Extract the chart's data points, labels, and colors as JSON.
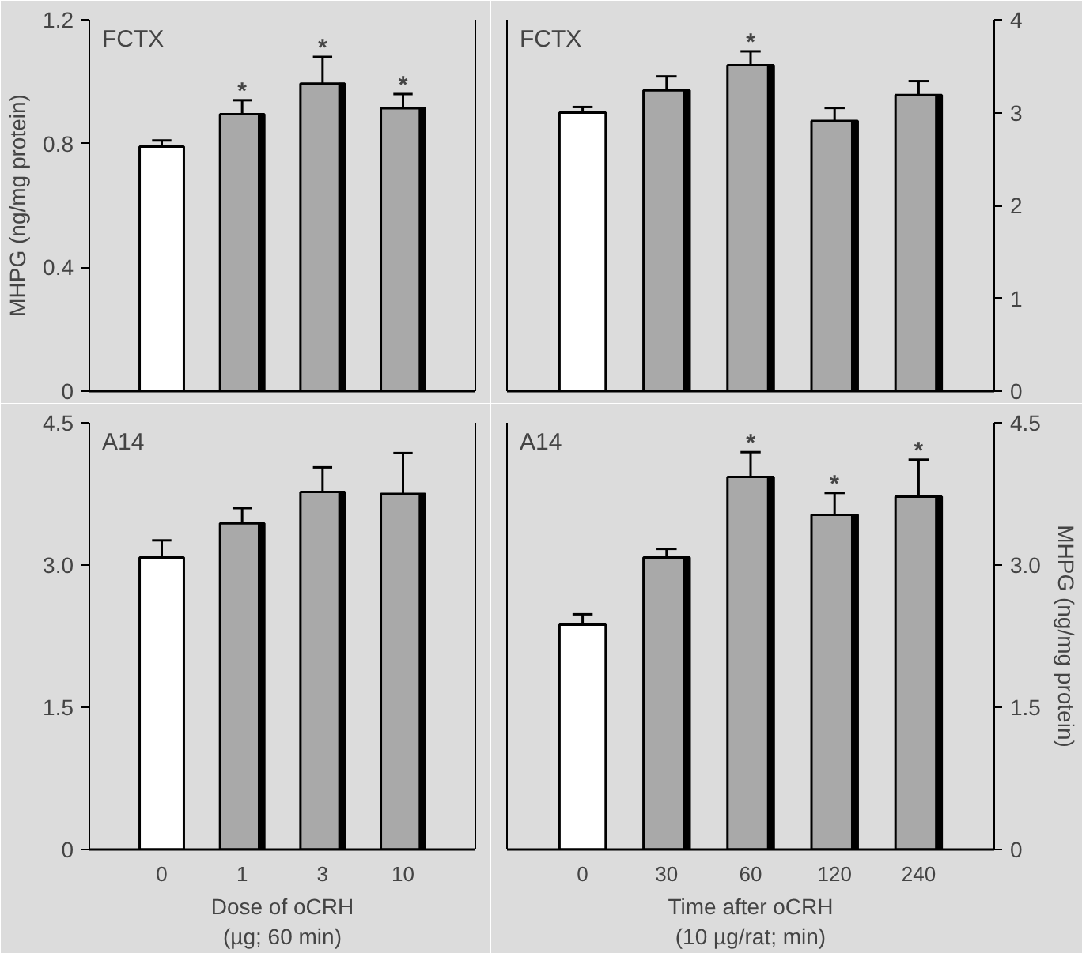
{
  "chart_data": [
    {
      "type": "bar",
      "title": "FCTX",
      "ylabel": "MHPG (ng/mg protein)",
      "categories": [
        "0",
        "1",
        "3",
        "10"
      ],
      "values": [
        0.79,
        0.895,
        0.994,
        0.914
      ],
      "colors": [
        "#ffffff",
        "#a9a9a9",
        "#a9a9a9",
        "#a9a9a9"
      ],
      "errors": [
        [
          0.79,
          0.81
        ],
        [
          0.895,
          0.94
        ],
        [
          0.994,
          1.08
        ],
        [
          0.914,
          0.96
        ]
      ],
      "ylim": [
        0,
        1.2
      ],
      "yticks": [
        0,
        {
          "value": 0.4,
          "label": "0.4"
        },
        {
          "value": 0.8,
          "label": "0.8"
        },
        {
          "value": 1.2,
          "label": "1.2"
        }
      ],
      "tick_labels": "y",
      "annotations": [
        {
          "text": "*",
          "x": "1",
          "y": 0.94
        },
        {
          "text": "*",
          "x": "3",
          "y": 1.08
        },
        {
          "text": "*",
          "x": "10",
          "y": 0.96
        }
      ]
    },
    {
      "type": "bar",
      "title": "FCTX",
      "categories": [
        "0",
        "30",
        "60",
        "120",
        "240"
      ],
      "values": [
        3.0,
        3.24,
        3.51,
        2.91,
        3.19
      ],
      "colors": [
        "#ffffff",
        "#a9a9a9",
        "#a9a9a9",
        "#a9a9a9",
        "#a9a9a9"
      ],
      "errors": [
        [
          3.0,
          3.06
        ],
        [
          3.24,
          3.39
        ],
        [
          3.51,
          3.66
        ],
        [
          2.91,
          3.05
        ],
        [
          3.19,
          3.34
        ]
      ],
      "ylim": [
        0,
        4
      ],
      "yticks": [
        0,
        1,
        2,
        3,
        4
      ],
      "tick_labels": "y",
      "annotations": [
        {
          "text": "*",
          "x": "60",
          "y": 3.66
        }
      ]
    },
    {
      "type": "bar",
      "title": "A14",
      "xlabel": "Dose of oCRH\n(µg; 60 min)",
      "categories": [
        "0",
        "1",
        "3",
        "10"
      ],
      "values": [
        3.08,
        3.44,
        3.77,
        3.75
      ],
      "colors": [
        "#ffffff",
        "#a9a9a9",
        "#a9a9a9",
        "#a9a9a9"
      ],
      "errors": [
        [
          3.08,
          3.26
        ],
        [
          3.44,
          3.6
        ],
        [
          3.77,
          4.03
        ],
        [
          3.75,
          4.18
        ]
      ],
      "ylim": [
        0,
        4.5
      ],
      "yticks": [
        0,
        {
          "value": 1.5,
          "label": "1.5"
        },
        {
          "value": 3,
          "label": "3.0"
        },
        {
          "value": 4.5,
          "label": "4.5"
        }
      ]
    },
    {
      "type": "bar",
      "title": "A14",
      "xlabel": "Time after oCRH\n(10 µg/rat; min)",
      "ylabel": "MHPG (ng/mg protein)",
      "categories": [
        "0",
        "30",
        "60",
        "120",
        "240"
      ],
      "values": [
        2.37,
        3.08,
        3.93,
        3.53,
        3.72
      ],
      "colors": [
        "#ffffff",
        "#a9a9a9",
        "#a9a9a9",
        "#a9a9a9",
        "#a9a9a9"
      ],
      "errors": [
        [
          2.37,
          2.48
        ],
        [
          3.08,
          3.17
        ],
        [
          3.93,
          4.19
        ],
        [
          3.53,
          3.76
        ],
        [
          3.72,
          4.11
        ]
      ],
      "ylim": [
        0,
        4.5
      ],
      "yticks": [
        0,
        {
          "value": 1.5,
          "label": "1.5"
        },
        {
          "value": 3,
          "label": "3.0"
        },
        {
          "value": 4.5,
          "label": "4.5"
        }
      ],
      "annotations": [
        {
          "text": "*",
          "x": "60",
          "y": 4.19
        },
        {
          "text": "*",
          "x": "120",
          "y": 3.76
        },
        {
          "text": "*",
          "x": "240",
          "y": 4.11
        }
      ]
    }
  ]
}
